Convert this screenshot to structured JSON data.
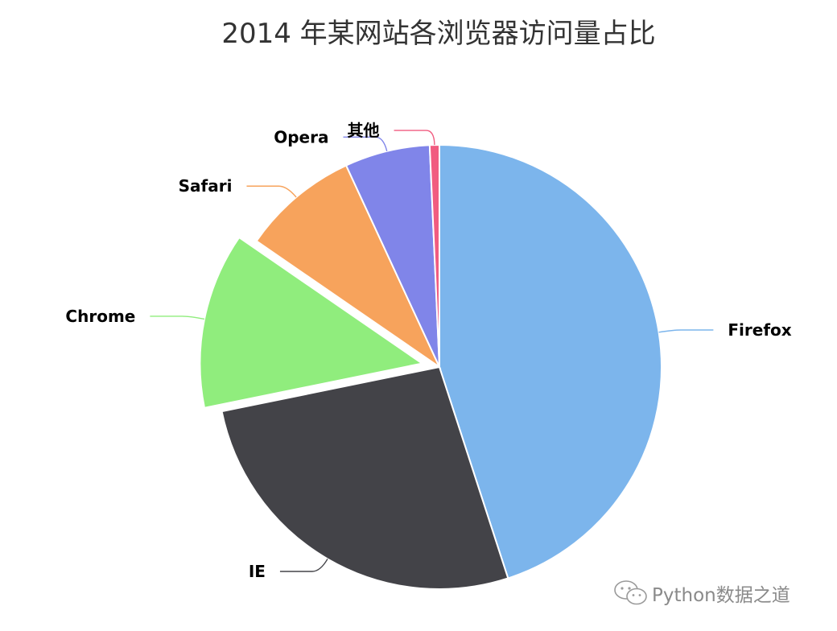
{
  "chart_data": {
    "type": "pie",
    "title": "2014 年某网站各浏览器访问量占比",
    "series": [
      {
        "name": "Firefox",
        "value": 45.0,
        "color": "#7cb5ec"
      },
      {
        "name": "IE",
        "value": 26.8,
        "color": "#434348"
      },
      {
        "name": "Chrome",
        "value": 12.8,
        "color": "#90ed7d",
        "sliced": true
      },
      {
        "name": "Safari",
        "value": 8.5,
        "color": "#f7a35c"
      },
      {
        "name": "Opera",
        "value": 6.2,
        "color": "#8085e9"
      },
      {
        "name": "其他",
        "value": 0.7,
        "color": "#f15c80"
      }
    ]
  },
  "watermark": {
    "text": "Python数据之道",
    "icon": "wechat-icon"
  }
}
